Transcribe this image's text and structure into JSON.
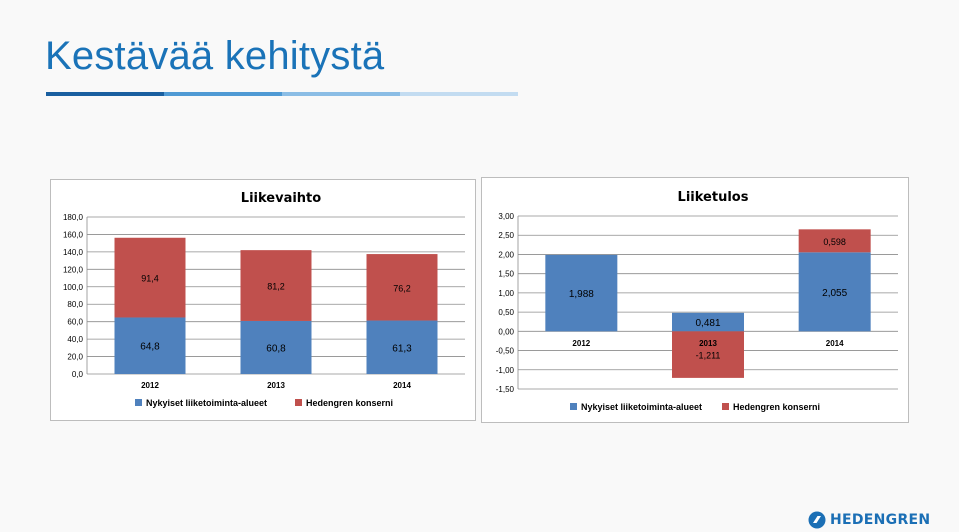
{
  "slide": {
    "title": "Kestävää kehitystä",
    "logo_text": "HEDENGREN",
    "title_bar_colors": [
      "#1a5fa0",
      "#4f9ad4",
      "#8bbde5",
      "#c3dcf1"
    ]
  },
  "colors": {
    "blue": "#4f81bd",
    "red": "#c0504d",
    "grid": "#8c8c8c",
    "title_accent": "#1a73b8"
  },
  "chart_data": [
    {
      "type": "bar",
      "stacked": true,
      "title": "Liikevaihto",
      "categories": [
        "2012",
        "2013",
        "2014"
      ],
      "ylim": [
        0,
        180
      ],
      "yticks": [
        "0,0",
        "20,0",
        "40,0",
        "60,0",
        "80,0",
        "100,0",
        "120,0",
        "140,0",
        "160,0",
        "180,0"
      ],
      "grid": true,
      "legend": "bottom",
      "series": [
        {
          "name": "Nykyiset liiketoiminta-alueet",
          "color": "#4f81bd",
          "values": [
            64.8,
            60.8,
            61.3
          ],
          "labels": [
            "64,8",
            "60,8",
            "61,3"
          ]
        },
        {
          "name": "Hedengren konserni",
          "color": "#c0504d",
          "values": [
            91.4,
            81.2,
            76.2
          ],
          "labels": [
            "91,4",
            "81,2",
            "76,2"
          ]
        }
      ]
    },
    {
      "type": "bar",
      "stacked": true,
      "title": "Liiketulos",
      "categories": [
        "2012",
        "2013",
        "2014"
      ],
      "ylim": [
        -1.5,
        3.0
      ],
      "yticks": [
        "-1,50",
        "-1,00",
        "-0,50",
        "0,00",
        "0,50",
        "1,00",
        "1,50",
        "2,00",
        "2,50",
        "3,00"
      ],
      "grid": true,
      "legend": "bottom",
      "series": [
        {
          "name": "Nykyiset liiketoiminta-alueet",
          "color": "#4f81bd",
          "values": [
            1.988,
            0.481,
            2.055
          ],
          "labels": [
            "1,988",
            "0,481",
            "2,055"
          ]
        },
        {
          "name": "Hedengren konserni",
          "color": "#c0504d",
          "values": [
            0,
            -1.211,
            0.598
          ],
          "labels": [
            "",
            "-1,211",
            "0,598"
          ]
        }
      ]
    }
  ]
}
